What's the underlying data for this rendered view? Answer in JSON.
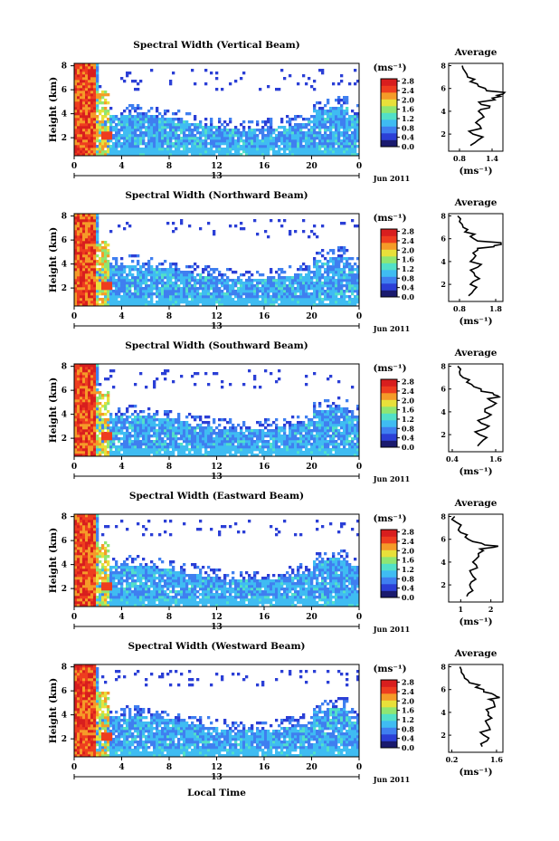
{
  "figure": {
    "xlabel": "Local Time",
    "date_label": "13",
    "month_label": "Jun 2011",
    "unit_label": "(ms⁻¹)",
    "ylabel": "Height (km)",
    "avg_title": "Average",
    "colorscale": [
      "#1a1a6e",
      "#2b3fd6",
      "#3f7ff0",
      "#3fbcf2",
      "#52e0c8",
      "#8fe672",
      "#e8e03a",
      "#f59b28",
      "#ee3d1f",
      "#d81e1e"
    ]
  },
  "chart_data": [
    {
      "type": "heatmap",
      "title": "Spectral Width (Vertical Beam)",
      "x_ticks": [
        "0",
        "4",
        "8",
        "12",
        "16",
        "20",
        "0"
      ],
      "x_range": [
        0,
        24
      ],
      "y_ticks": [
        "2",
        "4",
        "6",
        "8"
      ],
      "y_range": [
        0.5,
        8.2
      ],
      "colorbar_ticks": [
        "0.0",
        "0.4",
        "0.8",
        "1.2",
        "1.6",
        "2.0",
        "2.4",
        "2.8"
      ],
      "colorbar_range": [
        0,
        2.9
      ],
      "average": {
        "title": "Average",
        "x_ticks": [
          "0.8",
          "1.4"
        ],
        "x_range": [
          0.6,
          1.6
        ],
        "xlabel": "(ms⁻¹)",
        "height_km": [
          1.0,
          1.5,
          2.0,
          2.5,
          3.0,
          3.5,
          4.0,
          4.3,
          4.6,
          5.0,
          5.3,
          5.5,
          5.8,
          6.2,
          6.6,
          7.0,
          7.5,
          8.0
        ],
        "values": [
          1.0,
          1.15,
          1.05,
          1.2,
          1.1,
          1.25,
          1.15,
          1.35,
          1.2,
          1.45,
          1.55,
          1.6,
          1.3,
          1.15,
          1.0,
          0.95,
          0.9,
          0.85
        ]
      }
    },
    {
      "type": "heatmap",
      "title": "Spectral Width (Northward Beam)",
      "x_ticks": [
        "0",
        "4",
        "8",
        "12",
        "16",
        "20",
        "0"
      ],
      "x_range": [
        0,
        24
      ],
      "y_ticks": [
        "2",
        "4",
        "6",
        "8"
      ],
      "y_range": [
        0.5,
        8.2
      ],
      "colorbar_ticks": [
        "0.0",
        "0.4",
        "0.8",
        "1.2",
        "1.6",
        "2.0",
        "2.4",
        "2.8"
      ],
      "colorbar_range": [
        0,
        2.9
      ],
      "average": {
        "title": "Average",
        "x_ticks": [
          "0.8",
          "1.8"
        ],
        "x_range": [
          0.5,
          2.0
        ],
        "xlabel": "(ms⁻¹)",
        "height_km": [
          1.0,
          1.5,
          2.0,
          2.5,
          3.0,
          3.5,
          4.0,
          4.5,
          5.0,
          5.3,
          5.5,
          5.8,
          6.2,
          6.6,
          7.0,
          7.5,
          8.0
        ],
        "values": [
          1.05,
          1.2,
          1.1,
          1.35,
          1.2,
          1.3,
          1.1,
          1.25,
          1.3,
          1.75,
          1.95,
          1.3,
          1.1,
          0.95,
          0.9,
          0.8,
          0.75
        ]
      }
    },
    {
      "type": "heatmap",
      "title": "Spectral Width (Southward Beam)",
      "x_ticks": [
        "0",
        "4",
        "8",
        "12",
        "16",
        "20",
        "0"
      ],
      "x_range": [
        0,
        24
      ],
      "y_ticks": [
        "2",
        "4",
        "6",
        "8"
      ],
      "y_range": [
        0.5,
        8.2
      ],
      "colorbar_ticks": [
        "0.0",
        "0.4",
        "0.8",
        "1.2",
        "1.6",
        "2.0",
        "2.4",
        "2.8"
      ],
      "colorbar_range": [
        0,
        2.9
      ],
      "average": {
        "title": "Average",
        "x_ticks": [
          "0.4",
          "1.6"
        ],
        "x_range": [
          0.3,
          1.8
        ],
        "xlabel": "(ms⁻¹)",
        "height_km": [
          1.0,
          1.5,
          2.0,
          2.5,
          3.0,
          3.5,
          4.0,
          4.5,
          5.0,
          5.3,
          5.5,
          5.8,
          6.2,
          6.6,
          7.0,
          7.5,
          8.0
        ],
        "values": [
          1.1,
          1.25,
          1.15,
          1.3,
          1.2,
          1.35,
          1.3,
          1.5,
          1.45,
          1.7,
          1.55,
          1.2,
          1.0,
          0.8,
          0.7,
          0.6,
          0.55
        ]
      }
    },
    {
      "type": "heatmap",
      "title": "Spectral Width (Eastward Beam)",
      "x_ticks": [
        "0",
        "4",
        "8",
        "12",
        "16",
        "20",
        "0"
      ],
      "x_range": [
        0,
        24
      ],
      "y_ticks": [
        "2",
        "4",
        "6",
        "8"
      ],
      "y_range": [
        0.5,
        8.2
      ],
      "colorbar_ticks": [
        "0.0",
        "0.4",
        "0.8",
        "1.2",
        "1.6",
        "2.0",
        "2.4",
        "2.8"
      ],
      "colorbar_range": [
        0,
        2.9
      ],
      "average": {
        "title": "Average",
        "x_ticks": [
          "1",
          "2"
        ],
        "x_range": [
          0.6,
          2.4
        ],
        "xlabel": "(ms⁻¹)",
        "height_km": [
          1.0,
          1.5,
          2.0,
          2.5,
          3.0,
          3.5,
          4.0,
          4.5,
          5.0,
          5.3,
          5.5,
          5.8,
          6.2,
          6.6,
          7.0,
          7.5,
          8.0
        ],
        "values": [
          1.2,
          1.4,
          1.3,
          1.5,
          1.35,
          1.55,
          1.4,
          1.6,
          1.75,
          2.1,
          1.8,
          1.4,
          1.15,
          1.0,
          0.95,
          0.85,
          0.8
        ]
      }
    },
    {
      "type": "heatmap",
      "title": "Spectral Width (Westward Beam)",
      "x_ticks": [
        "0",
        "4",
        "8",
        "12",
        "16",
        "20",
        "0"
      ],
      "x_range": [
        0,
        24
      ],
      "y_ticks": [
        "2",
        "4",
        "6",
        "8"
      ],
      "y_range": [
        0.5,
        8.2
      ],
      "colorbar_ticks": [
        "0.0",
        "0.4",
        "0.8",
        "1.2",
        "1.6",
        "2.0",
        "2.4",
        "2.8"
      ],
      "colorbar_range": [
        0,
        2.9
      ],
      "average": {
        "title": "Average",
        "x_ticks": [
          "0.2",
          "1.6"
        ],
        "x_range": [
          0.1,
          1.8
        ],
        "xlabel": "(ms⁻¹)",
        "height_km": [
          1.0,
          1.5,
          2.0,
          2.5,
          3.0,
          3.5,
          4.0,
          4.5,
          5.0,
          5.3,
          5.5,
          5.8,
          6.2,
          6.6,
          7.0,
          7.5,
          8.0
        ],
        "values": [
          1.15,
          1.3,
          1.2,
          1.4,
          1.3,
          1.45,
          1.35,
          1.55,
          1.5,
          1.7,
          1.55,
          1.2,
          0.95,
          0.75,
          0.6,
          0.5,
          0.45
        ]
      }
    }
  ]
}
